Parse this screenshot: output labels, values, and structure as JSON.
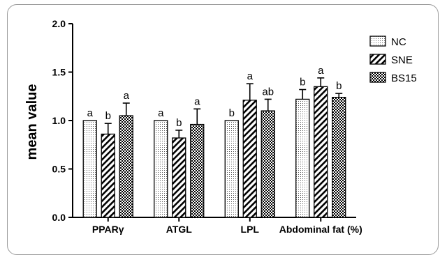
{
  "chart_data": {
    "type": "bar",
    "ylabel": "mean value",
    "xlabel": "",
    "ylim": [
      0,
      2.0
    ],
    "yticks": [
      "0.0",
      "0.5",
      "1.0",
      "1.5",
      "2.0"
    ],
    "categories": [
      "PPARγ",
      "ATGL",
      "LPL",
      "Abdominal fat (%)"
    ],
    "series": [
      {
        "name": "NC",
        "pattern": "dots",
        "values": [
          1.0,
          1.0,
          1.0,
          1.22
        ],
        "errors": [
          0.0,
          0.0,
          0.0,
          0.1
        ],
        "letters": [
          "a",
          "a",
          "b",
          "b"
        ]
      },
      {
        "name": "SNE",
        "pattern": "hatch",
        "values": [
          0.86,
          0.82,
          1.21,
          1.35
        ],
        "errors": [
          0.11,
          0.08,
          0.17,
          0.09
        ],
        "letters": [
          "b",
          "b",
          "a",
          "a"
        ]
      },
      {
        "name": "BS15",
        "pattern": "checker",
        "values": [
          1.05,
          0.96,
          1.1,
          1.24
        ],
        "errors": [
          0.13,
          0.16,
          0.12,
          0.04
        ],
        "letters": [
          "a",
          "a",
          "ab",
          "b"
        ]
      }
    ],
    "legend_position": "top-right",
    "grid": false
  }
}
